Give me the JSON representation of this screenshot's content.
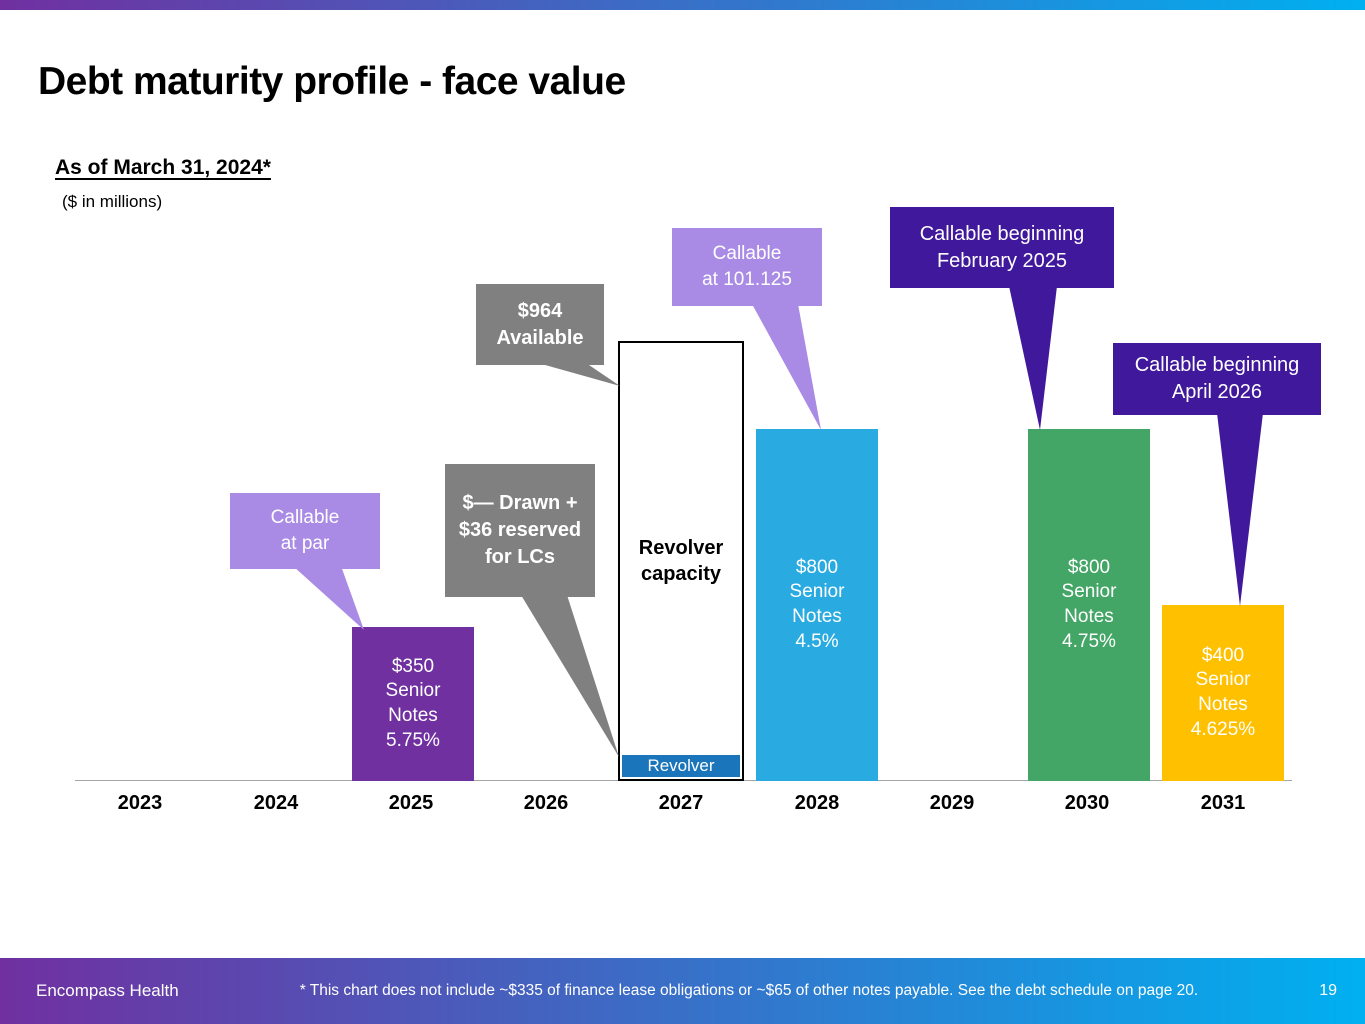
{
  "slide": {
    "title": "Debt maturity profile - face value",
    "as_of": "As of March 31, 2024*",
    "units_note": "($ in millions)"
  },
  "footer": {
    "brand": "Encompass Health",
    "footnote": "* This chart does not include ~$335 of finance lease obligations or ~$65 of other notes payable. See the debt schedule on page 20.",
    "page_number": "19"
  },
  "colors": {
    "gradient_left": "#7030A0",
    "gradient_right": "#00B0F0",
    "axis_line": "#A6A6A6",
    "callout_light_purple": "#A98BE5",
    "callout_gray": "#808080",
    "callout_dark_purple": "#40189B"
  },
  "chart_data": {
    "type": "bar",
    "title": "Debt maturity profile - face value",
    "subtitle": "As of March 31, 2024*",
    "units": "$ in millions",
    "xlabel": "",
    "ylabel": "",
    "ylim": [
      0,
      1000
    ],
    "grid": false,
    "legend": false,
    "categories": [
      "2023",
      "2024",
      "2025",
      "2026",
      "2027",
      "2028",
      "2029",
      "2030",
      "2031"
    ],
    "bars": [
      {
        "year": "2025",
        "value": 350,
        "label": "$350\nSenior\nNotes\n5.75%",
        "color": "#7030A0"
      },
      {
        "year": "2027",
        "value": 1000,
        "label": "Revolver\ncapacity",
        "color": "#FFFFFF",
        "available": 964,
        "drawn": 0,
        "reserved_for_lcs": 36,
        "segment": {
          "label": "Revolver",
          "value": 36,
          "color": "#1B75BB"
        }
      },
      {
        "year": "2028",
        "value": 800,
        "label": "$800\nSenior\nNotes\n4.5%",
        "color": "#29ABE2"
      },
      {
        "year": "2030",
        "value": 800,
        "label": "$800\nSenior\nNotes\n4.75%",
        "color": "#44A666"
      },
      {
        "year": "2031",
        "value": 400,
        "label": "$400\nSenior\nNotes\n4.625%",
        "color": "#FFC000"
      }
    ],
    "callouts": [
      {
        "text": "Callable\nat par",
        "target_year": "2025"
      },
      {
        "text": "$964\nAvailable",
        "target_year": "2027"
      },
      {
        "text": "$— Drawn +\n$36 reserved\nfor LCs",
        "target_year": "2027"
      },
      {
        "text": "Callable\nat 101.125",
        "target_year": "2028"
      },
      {
        "text": "Callable beginning\nFebruary 2025",
        "target_year": "2030"
      },
      {
        "text": "Callable beginning\nApril 2026",
        "target_year": "2031"
      }
    ]
  }
}
